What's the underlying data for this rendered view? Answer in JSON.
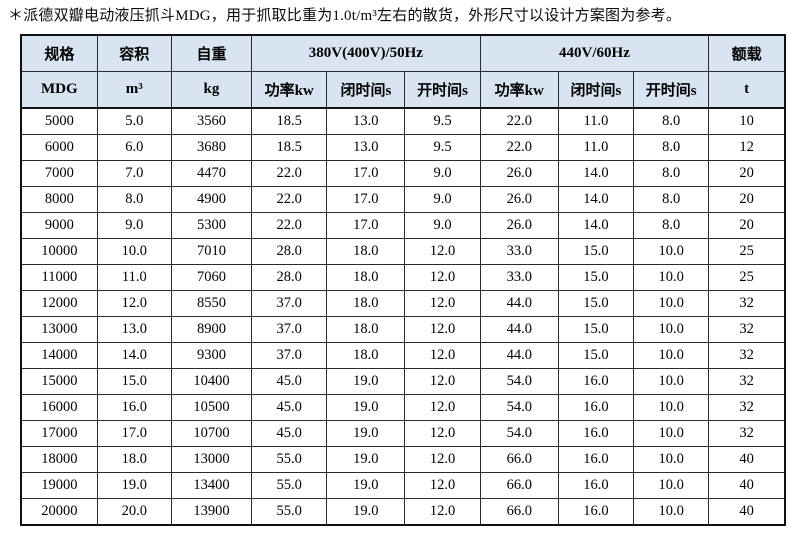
{
  "note": "＊派德双瓣电动液压抓斗MDG，用于抓取比重为1.0t/m³左右的散货，外形尺寸以设计方案图为参考。",
  "colors": {
    "header_bg": "#d8e4f2",
    "border_outer": "#111111",
    "border_inner": "#2a2a2a",
    "text": "#000000",
    "page_bg": "#ffffff"
  },
  "table": {
    "header_row1": {
      "spec": "规格",
      "volume": "容积",
      "self_weight": "自重",
      "group_380v": "380V(400V)/50Hz",
      "group_440v": "440V/60Hz",
      "rated_load": "额载"
    },
    "header_row2": {
      "spec_unit": "MDG",
      "volume_unit": "m³",
      "self_weight_unit": "kg",
      "power_50hz": "功率kw",
      "close_time_50hz": "闭时间s",
      "open_time_50hz": "开时间s",
      "power_60hz": "功率kw",
      "close_time_60hz": "闭时间s",
      "open_time_60hz": "开时间s",
      "rated_load_unit": "t"
    },
    "rows": [
      [
        "5000",
        "5.0",
        "3560",
        "18.5",
        "13.0",
        "9.5",
        "22.0",
        "11.0",
        "8.0",
        "10"
      ],
      [
        "6000",
        "6.0",
        "3680",
        "18.5",
        "13.0",
        "9.5",
        "22.0",
        "11.0",
        "8.0",
        "12"
      ],
      [
        "7000",
        "7.0",
        "4470",
        "22.0",
        "17.0",
        "9.0",
        "26.0",
        "14.0",
        "8.0",
        "20"
      ],
      [
        "8000",
        "8.0",
        "4900",
        "22.0",
        "17.0",
        "9.0",
        "26.0",
        "14.0",
        "8.0",
        "20"
      ],
      [
        "9000",
        "9.0",
        "5300",
        "22.0",
        "17.0",
        "9.0",
        "26.0",
        "14.0",
        "8.0",
        "20"
      ],
      [
        "10000",
        "10.0",
        "7010",
        "28.0",
        "18.0",
        "12.0",
        "33.0",
        "15.0",
        "10.0",
        "25"
      ],
      [
        "11000",
        "11.0",
        "7060",
        "28.0",
        "18.0",
        "12.0",
        "33.0",
        "15.0",
        "10.0",
        "25"
      ],
      [
        "12000",
        "12.0",
        "8550",
        "37.0",
        "18.0",
        "12.0",
        "44.0",
        "15.0",
        "10.0",
        "32"
      ],
      [
        "13000",
        "13.0",
        "8900",
        "37.0",
        "18.0",
        "12.0",
        "44.0",
        "15.0",
        "10.0",
        "32"
      ],
      [
        "14000",
        "14.0",
        "9300",
        "37.0",
        "18.0",
        "12.0",
        "44.0",
        "15.0",
        "10.0",
        "32"
      ],
      [
        "15000",
        "15.0",
        "10400",
        "45.0",
        "19.0",
        "12.0",
        "54.0",
        "16.0",
        "10.0",
        "32"
      ],
      [
        "16000",
        "16.0",
        "10500",
        "45.0",
        "19.0",
        "12.0",
        "54.0",
        "16.0",
        "10.0",
        "32"
      ],
      [
        "17000",
        "17.0",
        "10700",
        "45.0",
        "19.0",
        "12.0",
        "54.0",
        "16.0",
        "10.0",
        "32"
      ],
      [
        "18000",
        "18.0",
        "13000",
        "55.0",
        "19.0",
        "12.0",
        "66.0",
        "16.0",
        "10.0",
        "40"
      ],
      [
        "19000",
        "19.0",
        "13400",
        "55.0",
        "19.0",
        "12.0",
        "66.0",
        "16.0",
        "10.0",
        "40"
      ],
      [
        "20000",
        "20.0",
        "13900",
        "55.0",
        "19.0",
        "12.0",
        "66.0",
        "16.0",
        "10.0",
        "40"
      ]
    ]
  }
}
